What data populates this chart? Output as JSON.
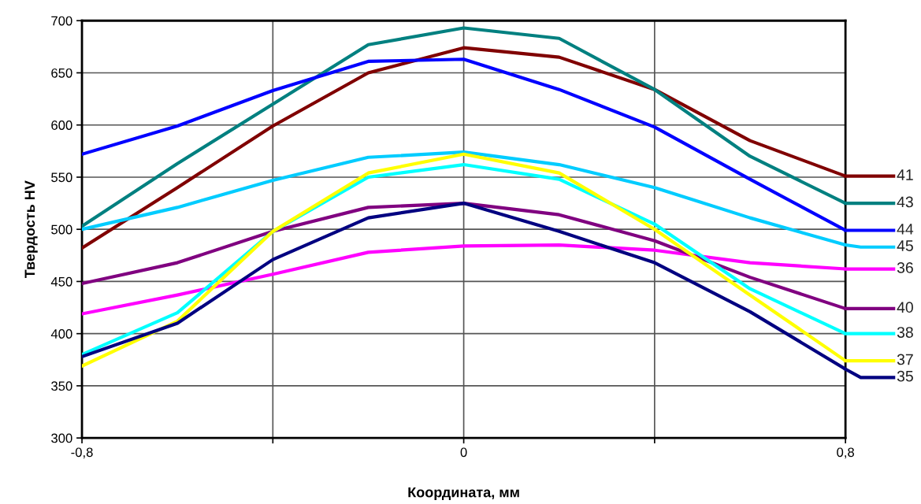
{
  "chart_data": {
    "type": "line",
    "xlabel": "Координата, мм",
    "ylabel": "Твердость HV",
    "x": [
      -0.8,
      -0.6,
      -0.4,
      -0.2,
      0,
      0.2,
      0.4,
      0.6,
      0.8
    ],
    "xlim": [
      -0.8,
      0.8
    ],
    "xticks": [
      {
        "value": -0.8,
        "label": "-0,8"
      },
      {
        "value": -0.4,
        "label": null
      },
      0,
      {
        "value": 0.4,
        "label": null
      },
      {
        "value": 0.8,
        "label": "0,8"
      }
    ],
    "ylim": [
      300,
      700
    ],
    "yticks": [
      300,
      350,
      400,
      450,
      500,
      550,
      600,
      650,
      700
    ],
    "grid": true,
    "legend": "right",
    "marker": "none",
    "line_style": "solid",
    "series": [
      {
        "name": "41",
        "color": "#800000",
        "values": [
          482,
          540,
          599,
          650,
          674,
          665,
          634,
          585,
          551
        ]
      },
      {
        "name": "43",
        "color": "#008080",
        "values": [
          503,
          563,
          620,
          677,
          693,
          683,
          634,
          570,
          525
        ]
      },
      {
        "name": "44",
        "color": "#0000ff",
        "values": [
          572,
          599,
          633,
          661,
          663,
          634,
          598,
          548,
          499
        ]
      },
      {
        "name": "45",
        "color": "#00ccff",
        "values": [
          500,
          521,
          547,
          569,
          574,
          562,
          540,
          511,
          485
        ]
      },
      {
        "name": "36",
        "color": "#ff00ff",
        "values": [
          419,
          437,
          457,
          478,
          484,
          485,
          480,
          468,
          462
        ]
      },
      {
        "name": "40",
        "color": "#800080",
        "values": [
          448,
          468,
          498,
          521,
          525,
          514,
          489,
          454,
          424
        ]
      },
      {
        "name": "38",
        "color": "#00ffff",
        "values": [
          380,
          420,
          498,
          550,
          562,
          548,
          505,
          443,
          400
        ]
      },
      {
        "name": "37",
        "color": "#ffff00",
        "values": [
          369,
          412,
          498,
          554,
          572,
          554,
          500,
          437,
          374
        ]
      },
      {
        "name": "35",
        "color": "#000080",
        "values": [
          378,
          410,
          471,
          511,
          525,
          498,
          468,
          421,
          366
        ]
      }
    ]
  }
}
